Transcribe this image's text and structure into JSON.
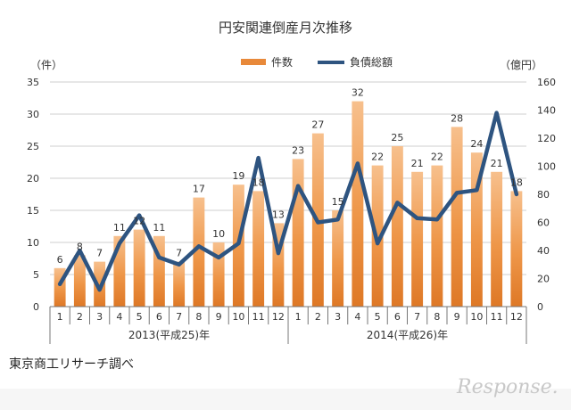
{
  "chart_data": {
    "type": "bar+line",
    "title": "円安関連倒産月次推移",
    "left_unit": "（件）",
    "right_unit": "（億円）",
    "categories": [
      "1",
      "2",
      "3",
      "4",
      "5",
      "6",
      "7",
      "8",
      "9",
      "10",
      "11",
      "12",
      "1",
      "2",
      "3",
      "4",
      "5",
      "6",
      "7",
      "8",
      "9",
      "10",
      "11",
      "12"
    ],
    "year_groups": [
      "2013(平成25)年",
      "2014(平成26)年"
    ],
    "left_axis": {
      "min": 0,
      "max": 35,
      "step": 5
    },
    "right_axis": {
      "min": 0,
      "max": 160,
      "step": 20
    },
    "series": [
      {
        "name": "件数",
        "type": "bar",
        "axis": "left",
        "color": "#e8893a",
        "values": [
          6,
          8,
          7,
          11,
          12,
          11,
          7,
          17,
          10,
          19,
          18,
          13,
          23,
          27,
          15,
          32,
          22,
          25,
          21,
          22,
          28,
          24,
          21,
          18
        ]
      },
      {
        "name": "負債総額",
        "type": "line",
        "axis": "right",
        "color": "#2e5480",
        "values": [
          16,
          40,
          12,
          45,
          65,
          35,
          30,
          43,
          35,
          45,
          106,
          38,
          86,
          60,
          62,
          102,
          45,
          74,
          63,
          62,
          81,
          83,
          138,
          80
        ]
      }
    ],
    "legend_position": "top-right"
  },
  "source": "東京商工リサーチ調べ",
  "logo": "Response."
}
